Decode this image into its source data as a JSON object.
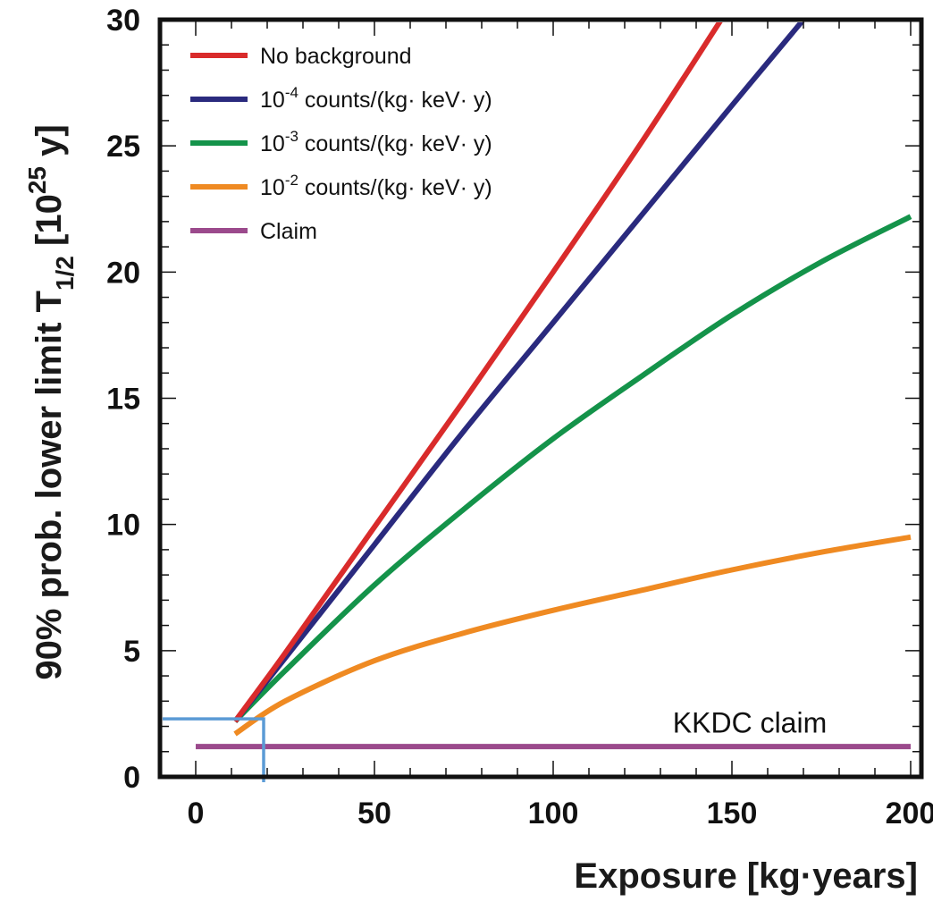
{
  "chart_data": {
    "type": "line",
    "title": "",
    "xlabel": "Exposure [kg·years]",
    "ylabel": {
      "prefix": "90% prob. lower limit T",
      "subscript": "1/2",
      "bracket_open": " [10",
      "superscript": "25",
      "bracket_close": " y]"
    },
    "xlim": [
      -10,
      203
    ],
    "ylim": [
      0,
      30
    ],
    "x_ticks": [
      0,
      50,
      100,
      150,
      200
    ],
    "y_ticks": [
      0,
      5,
      10,
      15,
      20,
      25,
      30
    ],
    "grid": false,
    "legend_position": "top-left",
    "series": [
      {
        "name": "No background",
        "legend": {
          "base": "No background",
          "sup": "",
          "rest": ""
        },
        "color": "#d92b2b",
        "x": [
          11,
          25,
          50,
          75,
          100,
          125,
          147
        ],
        "y": [
          2.2,
          4.9,
          9.9,
          14.9,
          20.0,
          25.2,
          30.0
        ]
      },
      {
        "name": "10-4 counts/(kg· keV· y)",
        "legend": {
          "base": "10",
          "sup": "-4",
          "rest": " counts/(kg· keV· y)"
        },
        "color": "#2a2a7e",
        "x": [
          11,
          25,
          50,
          75,
          100,
          125,
          150,
          170
        ],
        "y": [
          2.2,
          4.7,
          9.2,
          13.7,
          18.0,
          22.3,
          26.6,
          30.0
        ]
      },
      {
        "name": "10-3 counts/(kg· keV· y)",
        "legend": {
          "base": "10",
          "sup": "-3",
          "rest": " counts/(kg· keV· y)"
        },
        "color": "#14934a",
        "x": [
          11,
          25,
          50,
          75,
          100,
          125,
          150,
          175,
          200
        ],
        "y": [
          2.2,
          4.2,
          7.6,
          10.6,
          13.4,
          15.9,
          18.3,
          20.4,
          22.2
        ]
      },
      {
        "name": "10-2 counts/(kg· keV· y)",
        "legend": {
          "base": "10",
          "sup": "-2",
          "rest": " counts/(kg· keV· y)"
        },
        "color": "#ef8a22",
        "x": [
          11,
          25,
          50,
          75,
          100,
          125,
          150,
          175,
          200
        ],
        "y": [
          1.7,
          3.0,
          4.6,
          5.7,
          6.6,
          7.4,
          8.2,
          8.9,
          9.5
        ]
      },
      {
        "name": "Claim",
        "legend": {
          "base": "Claim",
          "sup": "",
          "rest": ""
        },
        "color": "#9b4a8c",
        "x": [
          0,
          200
        ],
        "y": [
          1.2,
          1.2
        ]
      }
    ],
    "annotations": [
      {
        "text": "KKDC claim",
        "x": 155,
        "y": 1.75
      }
    ],
    "highlight": {
      "color": "#5b9bd5",
      "exposure": 19,
      "limit": 2.3
    }
  }
}
